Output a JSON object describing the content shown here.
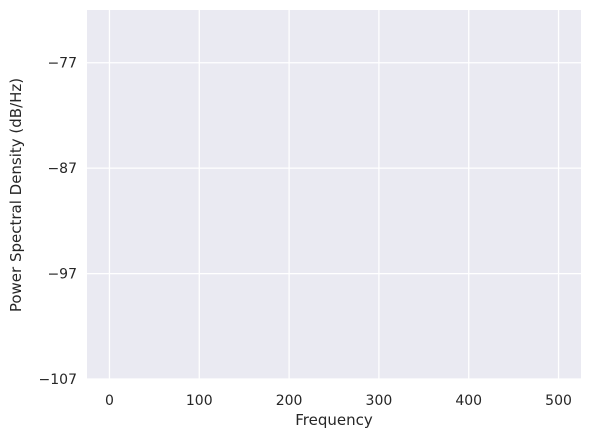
{
  "chart_data": {
    "type": "line",
    "title": "",
    "xlabel": "Frequency",
    "ylabel": "Power Spectral Density (dB/Hz)",
    "xlim": [
      -25,
      525
    ],
    "ylim": [
      -107,
      -72
    ],
    "xticks": [
      0,
      100,
      200,
      300,
      400,
      500
    ],
    "xtick_labels": [
      "0",
      "100",
      "200",
      "300",
      "400",
      "500"
    ],
    "yticks": [
      -77,
      -87,
      -97,
      -107
    ],
    "ytick_labels": [
      "−77",
      "−87",
      "−97",
      "−107"
    ],
    "grid": true,
    "series": [],
    "colors": {
      "plot_background": "#eaeaf2",
      "grid": "#ffffff",
      "text": "#262626"
    }
  }
}
